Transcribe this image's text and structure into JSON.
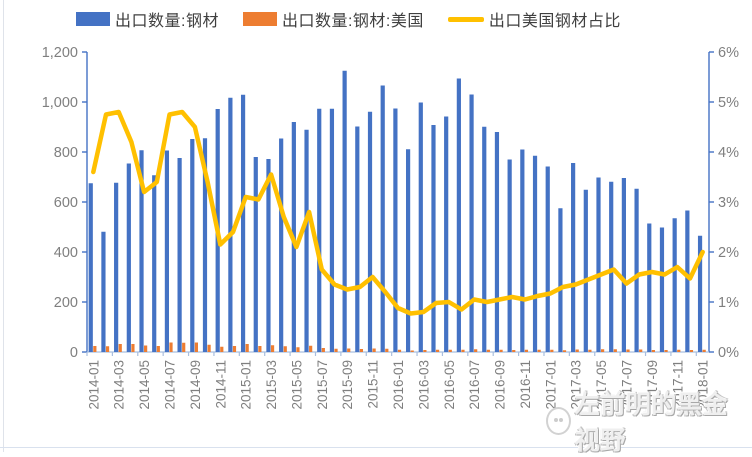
{
  "legend": {
    "items": [
      {
        "label": "出口数量:钢材",
        "swatch": "rect",
        "color": "#4472C4"
      },
      {
        "label": "出口数量:钢材:美国",
        "swatch": "rect",
        "color": "#ED7D31"
      },
      {
        "label": "出口美国钢材占比",
        "swatch": "line",
        "color": "#FFC000"
      }
    ]
  },
  "watermark": {
    "text": "左前明的黑金视野",
    "logo": "panda-face-icon"
  },
  "axes": {
    "left_tick_labels": [
      "1,200",
      "1,000",
      "800",
      "600",
      "400",
      "200",
      "0"
    ],
    "right_tick_labels": [
      "6%",
      "5%",
      "4%",
      "3%",
      "2%",
      "1%",
      "0%"
    ],
    "axis_color": "#4472C4",
    "x_axis_color": "#A9BFDF",
    "tick_label_color": "#7f7f7f"
  },
  "chart_data": {
    "type": "bar",
    "subtype": "combo-bar-line",
    "categories": [
      "2014-01",
      "2014-02",
      "2014-03",
      "2014-04",
      "2014-05",
      "2014-06",
      "2014-07",
      "2014-08",
      "2014-09",
      "2014-10",
      "2014-11",
      "2014-12",
      "2015-01",
      "2015-02",
      "2015-03",
      "2015-04",
      "2015-05",
      "2015-06",
      "2015-07",
      "2015-08",
      "2015-09",
      "2015-10",
      "2015-11",
      "2015-12",
      "2016-01",
      "2016-02",
      "2016-03",
      "2016-04",
      "2016-05",
      "2016-06",
      "2016-07",
      "2016-08",
      "2016-09",
      "2016-10",
      "2016-11",
      "2016-12",
      "2017-01",
      "2017-02",
      "2017-03",
      "2017-04",
      "2017-05",
      "2017-06",
      "2017-07",
      "2017-08",
      "2017-09",
      "2017-10",
      "2017-11",
      "2017-12",
      "2018-01"
    ],
    "x_tick_label_step": 2,
    "series": [
      {
        "name": "出口数量:钢材",
        "type": "bar",
        "axis": "left",
        "color": "#4472C4",
        "values": [
          675,
          481,
          677,
          754,
          807,
          707,
          806,
          776,
          852,
          855,
          972,
          1017,
          1029,
          780,
          772,
          854,
          920,
          889,
          973,
          973,
          1125,
          902,
          961,
          1066,
          974,
          811,
          998,
          908,
          942,
          1094,
          1030,
          901,
          880,
          770,
          810,
          785,
          742,
          575,
          756,
          649,
          698,
          681,
          696,
          653,
          514,
          498,
          535,
          566,
          465
        ]
      },
      {
        "name": "出口数量:钢材:美国",
        "type": "bar",
        "axis": "left",
        "color": "#ED7D31",
        "values": [
          24,
          23,
          32,
          32,
          26,
          24,
          38,
          37,
          38,
          29,
          21,
          24,
          32,
          24,
          27,
          23,
          19,
          25,
          16,
          13,
          14,
          12,
          14,
          13,
          9,
          6,
          8,
          9,
          9,
          9,
          11,
          9,
          9,
          8,
          9,
          9,
          9,
          7,
          10,
          9,
          11,
          11,
          10,
          10,
          8,
          8,
          9,
          8,
          9
        ]
      },
      {
        "name": "出口美国钢材占比",
        "type": "line",
        "axis": "right",
        "color": "#FFC000",
        "values": [
          3.6,
          4.75,
          4.8,
          4.2,
          3.2,
          3.4,
          4.75,
          4.8,
          4.5,
          3.4,
          2.15,
          2.4,
          3.1,
          3.05,
          3.55,
          2.7,
          2.1,
          2.8,
          1.65,
          1.35,
          1.25,
          1.3,
          1.5,
          1.2,
          0.88,
          0.77,
          0.8,
          0.98,
          1.0,
          0.85,
          1.05,
          1.0,
          1.05,
          1.1,
          1.05,
          1.12,
          1.17,
          1.3,
          1.35,
          1.45,
          1.55,
          1.65,
          1.37,
          1.55,
          1.6,
          1.55,
          1.7,
          1.47,
          2.0
        ]
      }
    ],
    "title": "",
    "xlabel": "",
    "ylabel_left": "",
    "ylabel_right": "",
    "ylim_left": [
      0,
      1200
    ],
    "ylim_right": [
      0,
      6
    ],
    "grid": false,
    "legend_position": "top"
  }
}
